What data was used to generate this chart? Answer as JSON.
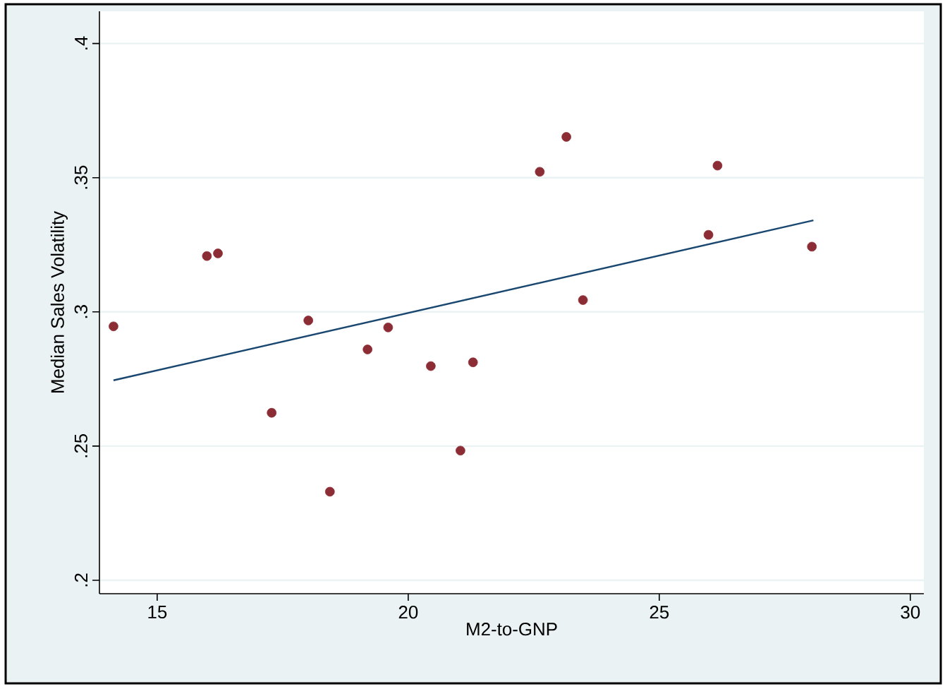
{
  "chart_data": {
    "type": "scatter",
    "xlabel": "M2-to-GNP",
    "ylabel": "Median Sales Volatility",
    "xlim": [
      13.85,
      30.27
    ],
    "ylim": [
      0.195,
      0.412
    ],
    "xticks": [
      15,
      20,
      25,
      30
    ],
    "yticks": [
      {
        "value": 0.2,
        "label": ".2"
      },
      {
        "value": 0.25,
        "label": ".25"
      },
      {
        "value": 0.3,
        "label": ".3"
      },
      {
        "value": 0.35,
        "label": ".35"
      },
      {
        "value": 0.4,
        "label": ".4"
      }
    ],
    "grid": "y",
    "marker": "circle",
    "series": [
      {
        "color": "#8c2c34",
        "x": [
          14.13,
          15.99,
          16.21,
          17.28,
          18.01,
          18.44,
          19.19,
          19.6,
          20.45,
          21.04,
          21.29,
          22.62,
          23.15,
          23.48,
          25.98,
          26.16,
          28.04
        ],
        "values": [
          0.2946,
          0.3208,
          0.3218,
          0.2624,
          0.2968,
          0.233,
          0.286,
          0.2942,
          0.2798,
          0.2483,
          0.2812,
          0.3522,
          0.3652,
          0.3044,
          0.3287,
          0.3545,
          0.3243
        ]
      },
      {
        "type": "line",
        "marker": "none",
        "color": "#1a476f",
        "x": [
          14.13,
          28.07
        ],
        "values": [
          0.2745,
          0.3341
        ]
      }
    ]
  }
}
